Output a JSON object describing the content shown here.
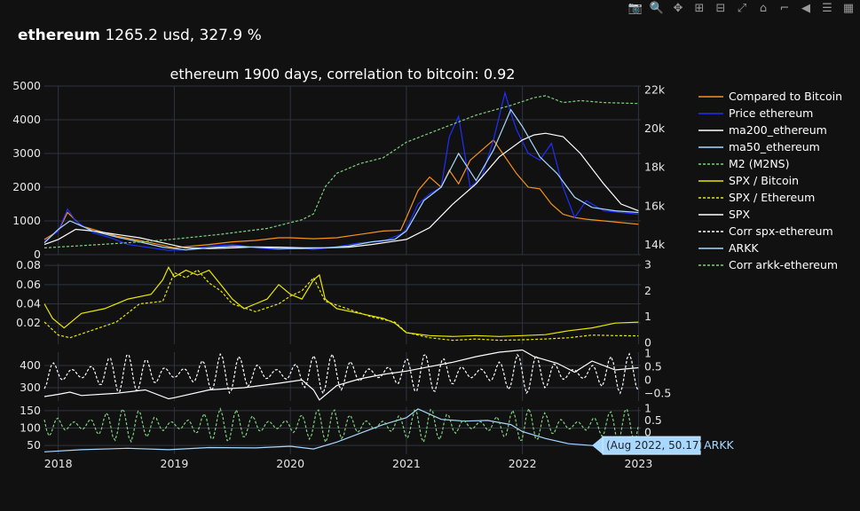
{
  "header": {
    "asset": "ethereum",
    "summary": "1265.2 usd, 327.9 %"
  },
  "toolbar": {
    "items": [
      {
        "name": "camera-icon",
        "glyph": "📷"
      },
      {
        "name": "zoom-icon",
        "glyph": "🔍"
      },
      {
        "name": "pan-icon",
        "glyph": "✥"
      },
      {
        "name": "zoom-in-icon",
        "glyph": "⊞"
      },
      {
        "name": "zoom-out-icon",
        "glyph": "⊟"
      },
      {
        "name": "autoscale-icon",
        "glyph": "⤢"
      },
      {
        "name": "home-icon",
        "glyph": "⌂"
      },
      {
        "name": "spike-lines-icon",
        "glyph": "⌐"
      },
      {
        "name": "hover-closest-icon",
        "glyph": "◀"
      },
      {
        "name": "hover-compare-icon",
        "glyph": "☰"
      },
      {
        "name": "plotly-logo-icon",
        "glyph": "▦"
      }
    ]
  },
  "chart_data": {
    "type": "line",
    "title": "ethereum 1900 days, correlation to bitcoin: 0.92",
    "x_ticks": [
      "2018",
      "2019",
      "2020",
      "2021",
      "2022",
      "2023"
    ],
    "x_range": [
      2017.88,
      2023.02
    ],
    "panels": [
      {
        "id": "price",
        "y_left": {
          "range": [
            0,
            5000
          ],
          "ticks": [
            "0",
            "1000",
            "2000",
            "3000",
            "4000",
            "5000"
          ],
          "values": [
            0,
            1000,
            2000,
            3000,
            4000,
            5000
          ]
        },
        "y_right": {
          "range": [
            13500,
            22200
          ],
          "ticks": [
            "14k",
            "16k",
            "18k",
            "20k",
            "22k"
          ],
          "values": [
            14000,
            16000,
            18000,
            20000,
            22000
          ]
        },
        "series": [
          {
            "name": "Compared to Bitcoin",
            "color": "#f7931a",
            "dash": "solid",
            "axis": "left",
            "x": [
              2017.88,
              2018.0,
              2018.08,
              2018.2,
              2018.35,
              2018.5,
              2018.7,
              2018.9,
              2019.0,
              2019.3,
              2019.5,
              2019.7,
              2019.9,
              2020.0,
              2020.2,
              2020.4,
              2020.6,
              2020.8,
              2020.95,
              2021.0,
              2021.1,
              2021.2,
              2021.3,
              2021.37,
              2021.45,
              2021.55,
              2021.65,
              2021.75,
              2021.85,
              2021.95,
              2022.05,
              2022.15,
              2022.25,
              2022.35,
              2022.45,
              2022.55,
              2022.7,
              2022.85,
              2023.0
            ],
            "y": [
              450,
              700,
              1250,
              850,
              700,
              550,
              420,
              280,
              200,
              300,
              380,
              420,
              500,
              500,
              470,
              500,
              600,
              700,
              720,
              1100,
              1900,
              2300,
              2000,
              2500,
              2100,
              2800,
              3100,
              3400,
              2900,
              2400,
              2000,
              1950,
              1500,
              1200,
              1100,
              1050,
              1000,
              950,
              900
            ]
          },
          {
            "name": "Price ethereum",
            "color": "#1f2fff",
            "dash": "solid",
            "axis": "left",
            "x": [
              2017.88,
              2018.0,
              2018.08,
              2018.15,
              2018.3,
              2018.45,
              2018.6,
              2018.8,
              2018.95,
              2019.1,
              2019.3,
              2019.5,
              2019.7,
              2019.9,
              2020.1,
              2020.2,
              2020.4,
              2020.6,
              2020.8,
              2020.95,
              2021.0,
              2021.1,
              2021.2,
              2021.3,
              2021.37,
              2021.45,
              2021.55,
              2021.65,
              2021.75,
              2021.85,
              2021.9,
              2021.95,
              2022.05,
              2022.15,
              2022.25,
              2022.35,
              2022.45,
              2022.55,
              2022.7,
              2022.85,
              2023.0
            ],
            "y": [
              400,
              700,
              1350,
              1000,
              650,
              500,
              300,
              200,
              130,
              140,
              250,
              300,
              200,
              150,
              200,
              150,
              230,
              350,
              400,
              600,
              750,
              1500,
              1800,
              2000,
              3500,
              4100,
              2000,
              2300,
              3400,
              4800,
              4200,
              3700,
              3000,
              2800,
              3300,
              2000,
              1100,
              1600,
              1300,
              1250,
              1200
            ]
          },
          {
            "name": "ma200_ethereum",
            "color": "#ffffff",
            "dash": "solid",
            "axis": "left",
            "x": [
              2017.88,
              2018.0,
              2018.15,
              2018.3,
              2018.5,
              2018.7,
              2018.9,
              2019.1,
              2019.3,
              2019.5,
              2019.7,
              2019.9,
              2020.1,
              2020.3,
              2020.5,
              2020.7,
              2020.9,
              2021.0,
              2021.2,
              2021.4,
              2021.6,
              2021.8,
              2022.0,
              2022.1,
              2022.2,
              2022.35,
              2022.5,
              2022.7,
              2022.85,
              2023.0
            ],
            "y": [
              300,
              450,
              750,
              700,
              600,
              500,
              350,
              200,
              180,
              200,
              230,
              220,
              200,
              200,
              220,
              300,
              400,
              450,
              800,
              1500,
              2100,
              2900,
              3400,
              3550,
              3600,
              3500,
              3000,
              2100,
              1500,
              1300
            ]
          },
          {
            "name": "ma50_ethereum",
            "color": "#a8d8ff",
            "dash": "solid",
            "axis": "left",
            "x": [
              2017.88,
              2018.0,
              2018.1,
              2018.3,
              2018.5,
              2018.7,
              2018.9,
              2019.1,
              2019.3,
              2019.5,
              2019.7,
              2019.9,
              2020.1,
              2020.3,
              2020.5,
              2020.7,
              2020.9,
              2021.0,
              2021.15,
              2021.3,
              2021.45,
              2021.6,
              2021.75,
              2021.9,
              2022.0,
              2022.15,
              2022.3,
              2022.45,
              2022.6,
              2022.8,
              2023.0
            ],
            "y": [
              350,
              750,
              1000,
              700,
              520,
              380,
              220,
              140,
              200,
              250,
              220,
              180,
              180,
              200,
              250,
              380,
              450,
              700,
              1600,
              2000,
              3000,
              2200,
              3100,
              4300,
              3800,
              2900,
              2400,
              1700,
              1400,
              1300,
              1250
            ]
          },
          {
            "name": "M2 (M2NS)",
            "color": "#7fd17f",
            "dash": "dash",
            "axis": "right",
            "x": [
              2017.88,
              2018.3,
              2018.7,
              2019.0,
              2019.4,
              2019.8,
              2020.1,
              2020.2,
              2020.3,
              2020.4,
              2020.6,
              2020.8,
              2021.0,
              2021.3,
              2021.6,
              2021.9,
              2022.1,
              2022.2,
              2022.35,
              2022.5,
              2022.7,
              2023.0
            ],
            "y": [
              13850,
              14000,
              14150,
              14300,
              14550,
              14850,
              15300,
              15600,
              17000,
              17700,
              18200,
              18500,
              19300,
              20000,
              20700,
              21200,
              21600,
              21700,
              21350,
              21450,
              21350,
              21300
            ]
          }
        ]
      },
      {
        "id": "ratio",
        "y_left": {
          "range": [
            -0.002,
            0.082
          ],
          "ticks": [
            "0.02",
            "0.04",
            "0.06",
            "0.08"
          ],
          "values": [
            0.02,
            0.04,
            0.06,
            0.08
          ]
        },
        "y_right": {
          "range": [
            -0.05,
            3.05
          ],
          "ticks": [
            "0",
            "1",
            "2",
            "3"
          ],
          "values": [
            0,
            1,
            2,
            3
          ]
        },
        "series": [
          {
            "name": "SPX / Bitcoin",
            "color": "#e8e800",
            "dash": "solid",
            "axis": "left",
            "x": [
              2017.88,
              2017.95,
              2018.05,
              2018.2,
              2018.4,
              2018.6,
              2018.8,
              2018.9,
              2018.95,
              2019.0,
              2019.1,
              2019.2,
              2019.3,
              2019.4,
              2019.5,
              2019.6,
              2019.7,
              2019.8,
              2019.9,
              2020.0,
              2020.1,
              2020.2,
              2020.25,
              2020.3,
              2020.4,
              2020.6,
              2020.8,
              2020.9,
              2021.0,
              2021.2,
              2021.4,
              2021.6,
              2021.8,
              2022.0,
              2022.2,
              2022.4,
              2022.6,
              2022.8,
              2023.0
            ],
            "y": [
              0.04,
              0.025,
              0.015,
              0.03,
              0.035,
              0.045,
              0.05,
              0.065,
              0.078,
              0.068,
              0.075,
              0.07,
              0.075,
              0.06,
              0.045,
              0.035,
              0.04,
              0.045,
              0.06,
              0.05,
              0.045,
              0.065,
              0.07,
              0.045,
              0.035,
              0.03,
              0.025,
              0.02,
              0.01,
              0.007,
              0.006,
              0.007,
              0.006,
              0.007,
              0.008,
              0.012,
              0.015,
              0.02,
              0.021
            ]
          },
          {
            "name": "SPX / Ethereum",
            "color": "#e8e800",
            "dash": "dash",
            "axis": "right",
            "x": [
              2017.88,
              2018.0,
              2018.1,
              2018.3,
              2018.5,
              2018.7,
              2018.9,
              2019.0,
              2019.1,
              2019.2,
              2019.3,
              2019.4,
              2019.5,
              2019.7,
              2019.9,
              2020.0,
              2020.1,
              2020.2,
              2020.3,
              2020.5,
              2020.7,
              2020.9,
              2021.0,
              2021.2,
              2021.4,
              2021.6,
              2021.8,
              2022.0,
              2022.2,
              2022.4,
              2022.6,
              2022.8,
              2023.0
            ],
            "y": [
              0.8,
              0.3,
              0.2,
              0.5,
              0.8,
              1.5,
              1.6,
              2.7,
              2.5,
              2.8,
              2.3,
              2.0,
              1.5,
              1.2,
              1.5,
              1.8,
              2.0,
              2.5,
              1.6,
              1.3,
              1.0,
              0.8,
              0.4,
              0.2,
              0.1,
              0.15,
              0.1,
              0.12,
              0.15,
              0.2,
              0.3,
              0.28,
              0.27
            ]
          }
        ]
      },
      {
        "id": "spx",
        "y_left": {
          "range": [
            240,
            460
          ],
          "ticks": [
            "300",
            "400"
          ],
          "values": [
            300,
            400
          ]
        },
        "y_right": {
          "range": [
            -0.78,
            1.05
          ],
          "ticks": [
            "−0.5",
            "0",
            "0.5",
            "1"
          ],
          "values": [
            -0.5,
            0,
            0.5,
            1
          ]
        },
        "series": [
          {
            "name": "SPX",
            "color": "#ffffff",
            "dash": "solid",
            "axis": "left",
            "x": [
              2017.88,
              2018.0,
              2018.1,
              2018.2,
              2018.5,
              2018.75,
              2018.95,
              2019.0,
              2019.3,
              2019.6,
              2019.9,
              2020.1,
              2020.2,
              2020.25,
              2020.4,
              2020.6,
              2020.8,
              2021.0,
              2021.2,
              2021.4,
              2021.6,
              2021.8,
              2022.0,
              2022.1,
              2022.3,
              2022.45,
              2022.6,
              2022.8,
              2023.0
            ],
            "y": [
              260,
              270,
              280,
              265,
              275,
              290,
              250,
              255,
              290,
              300,
              320,
              335,
              290,
              245,
              310,
              340,
              360,
              375,
              395,
              415,
              440,
              460,
              470,
              440,
              410,
              370,
              420,
              380,
              390
            ]
          },
          {
            "name": "Corr spx-ethereum",
            "color": "#ffffff",
            "dash": "dash",
            "axis": "right",
            "oscillating": true,
            "x": [
              2017.88,
              2023.0
            ],
            "period": 0.16,
            "y_mid": 0.25,
            "y_amp": 0.75
          }
        ]
      },
      {
        "id": "arkk",
        "y_left": {
          "range": [
            25,
            160
          ],
          "ticks": [
            "50",
            "100",
            "150"
          ],
          "values": [
            50,
            100,
            150
          ]
        },
        "y_right": {
          "range": [
            -0.9,
            1.05
          ],
          "ticks": [
            "0",
            "0.5",
            "1"
          ],
          "values": [
            0,
            0.5,
            1
          ]
        },
        "series": [
          {
            "name": "ARKK",
            "color": "#a8d8ff",
            "dash": "solid",
            "axis": "left",
            "x": [
              2017.88,
              2018.2,
              2018.6,
              2018.95,
              2019.3,
              2019.7,
              2020.0,
              2020.2,
              2020.4,
              2020.6,
              2020.8,
              2021.0,
              2021.1,
              2021.3,
              2021.5,
              2021.7,
              2021.9,
              2022.0,
              2022.2,
              2022.4,
              2022.6,
              2022.8,
              2023.0
            ],
            "y": [
              32,
              38,
              42,
              38,
              44,
              43,
              48,
              40,
              60,
              85,
              110,
              130,
              155,
              125,
              120,
              122,
              110,
              90,
              70,
              55,
              50,
              42,
              35
            ]
          },
          {
            "name": "Corr arkk-ethereum",
            "color": "#7fd17f",
            "dash": "dash",
            "axis": "right",
            "oscillating": true,
            "x": [
              2017.88,
              2023.0
            ],
            "period": 0.14,
            "y_mid": 0.3,
            "y_amp": 0.7
          }
        ]
      }
    ],
    "legend": {
      "placement": "right",
      "entries": [
        {
          "name": "Compared to Bitcoin",
          "color": "#f7931a",
          "dash": "solid"
        },
        {
          "name": "Price ethereum",
          "color": "#1f2fff",
          "dash": "solid"
        },
        {
          "name": "ma200_ethereum",
          "color": "#ffffff",
          "dash": "solid"
        },
        {
          "name": "ma50_ethereum",
          "color": "#a8d8ff",
          "dash": "solid"
        },
        {
          "name": "M2 (M2NS)",
          "color": "#7fd17f",
          "dash": "dash"
        },
        {
          "name": "SPX / Bitcoin",
          "color": "#e8e800",
          "dash": "solid"
        },
        {
          "name": "SPX / Ethereum",
          "color": "#e8e800",
          "dash": "dash"
        },
        {
          "name": "SPX",
          "color": "#ffffff",
          "dash": "solid"
        },
        {
          "name": "Corr spx-ethereum",
          "color": "#ffffff",
          "dash": "dash"
        },
        {
          "name": "ARKK",
          "color": "#a8d8ff",
          "dash": "solid"
        },
        {
          "name": "Corr arkk-ethereum",
          "color": "#7fd17f",
          "dash": "dash"
        }
      ]
    },
    "hover": {
      "text": "(Aug 2022, 50.17)",
      "series": "ARKK",
      "x": 2022.6,
      "y": 50.17,
      "color": "#a8d8ff"
    },
    "grid": true
  }
}
